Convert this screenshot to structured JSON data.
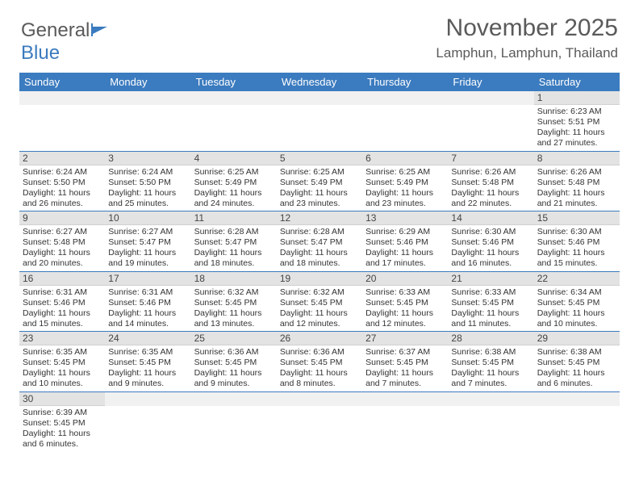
{
  "logo": {
    "text1": "General",
    "text2": "Blue"
  },
  "title": "November 2025",
  "location": "Lamphun, Lamphun, Thailand",
  "colors": {
    "header_bg": "#3b7bbf",
    "header_text": "#ffffff",
    "daynum_bg": "#e3e3e3",
    "empty_bg": "#f1f1f1",
    "text": "#333333",
    "title_text": "#5a5a5a",
    "row_border": "#3b7bbf"
  },
  "weekdays": [
    "Sunday",
    "Monday",
    "Tuesday",
    "Wednesday",
    "Thursday",
    "Friday",
    "Saturday"
  ],
  "weeks": [
    [
      null,
      null,
      null,
      null,
      null,
      null,
      {
        "n": "1",
        "sr": "6:23 AM",
        "ss": "5:51 PM",
        "dl": "11 hours and 27 minutes."
      }
    ],
    [
      {
        "n": "2",
        "sr": "6:24 AM",
        "ss": "5:50 PM",
        "dl": "11 hours and 26 minutes."
      },
      {
        "n": "3",
        "sr": "6:24 AM",
        "ss": "5:50 PM",
        "dl": "11 hours and 25 minutes."
      },
      {
        "n": "4",
        "sr": "6:25 AM",
        "ss": "5:49 PM",
        "dl": "11 hours and 24 minutes."
      },
      {
        "n": "5",
        "sr": "6:25 AM",
        "ss": "5:49 PM",
        "dl": "11 hours and 23 minutes."
      },
      {
        "n": "6",
        "sr": "6:25 AM",
        "ss": "5:49 PM",
        "dl": "11 hours and 23 minutes."
      },
      {
        "n": "7",
        "sr": "6:26 AM",
        "ss": "5:48 PM",
        "dl": "11 hours and 22 minutes."
      },
      {
        "n": "8",
        "sr": "6:26 AM",
        "ss": "5:48 PM",
        "dl": "11 hours and 21 minutes."
      }
    ],
    [
      {
        "n": "9",
        "sr": "6:27 AM",
        "ss": "5:48 PM",
        "dl": "11 hours and 20 minutes."
      },
      {
        "n": "10",
        "sr": "6:27 AM",
        "ss": "5:47 PM",
        "dl": "11 hours and 19 minutes."
      },
      {
        "n": "11",
        "sr": "6:28 AM",
        "ss": "5:47 PM",
        "dl": "11 hours and 18 minutes."
      },
      {
        "n": "12",
        "sr": "6:28 AM",
        "ss": "5:47 PM",
        "dl": "11 hours and 18 minutes."
      },
      {
        "n": "13",
        "sr": "6:29 AM",
        "ss": "5:46 PM",
        "dl": "11 hours and 17 minutes."
      },
      {
        "n": "14",
        "sr": "6:30 AM",
        "ss": "5:46 PM",
        "dl": "11 hours and 16 minutes."
      },
      {
        "n": "15",
        "sr": "6:30 AM",
        "ss": "5:46 PM",
        "dl": "11 hours and 15 minutes."
      }
    ],
    [
      {
        "n": "16",
        "sr": "6:31 AM",
        "ss": "5:46 PM",
        "dl": "11 hours and 15 minutes."
      },
      {
        "n": "17",
        "sr": "6:31 AM",
        "ss": "5:46 PM",
        "dl": "11 hours and 14 minutes."
      },
      {
        "n": "18",
        "sr": "6:32 AM",
        "ss": "5:45 PM",
        "dl": "11 hours and 13 minutes."
      },
      {
        "n": "19",
        "sr": "6:32 AM",
        "ss": "5:45 PM",
        "dl": "11 hours and 12 minutes."
      },
      {
        "n": "20",
        "sr": "6:33 AM",
        "ss": "5:45 PM",
        "dl": "11 hours and 12 minutes."
      },
      {
        "n": "21",
        "sr": "6:33 AM",
        "ss": "5:45 PM",
        "dl": "11 hours and 11 minutes."
      },
      {
        "n": "22",
        "sr": "6:34 AM",
        "ss": "5:45 PM",
        "dl": "11 hours and 10 minutes."
      }
    ],
    [
      {
        "n": "23",
        "sr": "6:35 AM",
        "ss": "5:45 PM",
        "dl": "11 hours and 10 minutes."
      },
      {
        "n": "24",
        "sr": "6:35 AM",
        "ss": "5:45 PM",
        "dl": "11 hours and 9 minutes."
      },
      {
        "n": "25",
        "sr": "6:36 AM",
        "ss": "5:45 PM",
        "dl": "11 hours and 9 minutes."
      },
      {
        "n": "26",
        "sr": "6:36 AM",
        "ss": "5:45 PM",
        "dl": "11 hours and 8 minutes."
      },
      {
        "n": "27",
        "sr": "6:37 AM",
        "ss": "5:45 PM",
        "dl": "11 hours and 7 minutes."
      },
      {
        "n": "28",
        "sr": "6:38 AM",
        "ss": "5:45 PM",
        "dl": "11 hours and 7 minutes."
      },
      {
        "n": "29",
        "sr": "6:38 AM",
        "ss": "5:45 PM",
        "dl": "11 hours and 6 minutes."
      }
    ],
    [
      {
        "n": "30",
        "sr": "6:39 AM",
        "ss": "5:45 PM",
        "dl": "11 hours and 6 minutes."
      },
      null,
      null,
      null,
      null,
      null,
      null
    ]
  ],
  "labels": {
    "sunrise": "Sunrise: ",
    "sunset": "Sunset: ",
    "daylight": "Daylight: "
  }
}
